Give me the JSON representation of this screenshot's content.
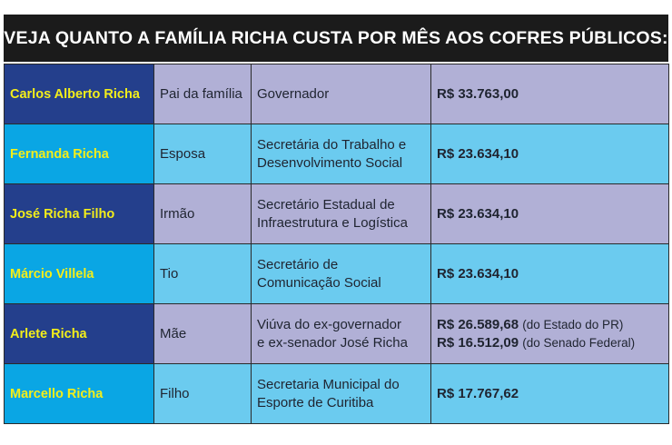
{
  "title": "VEJA QUANTO A FAMÍLIA RICHA CUSTA POR MÊS AOS COFRES PÚBLICOS:",
  "rows": [
    {
      "name": "Carlos Alberto Richa",
      "relation": "Pai da família",
      "role": [
        "Governador",
        ""
      ],
      "amounts": [
        {
          "value": "R$ 33.763,00",
          "note": ""
        }
      ]
    },
    {
      "name": "Fernanda Richa",
      "relation": "Esposa",
      "role": [
        "Secretária do Trabalho e",
        "Desenvolvimento Social"
      ],
      "amounts": [
        {
          "value": "R$ 23.634,10",
          "note": ""
        }
      ]
    },
    {
      "name": "José Richa Filho",
      "relation": "Irmão",
      "role": [
        "Secretário Estadual de",
        "Infraestrutura e Logística"
      ],
      "amounts": [
        {
          "value": "R$ 23.634,10",
          "note": ""
        }
      ]
    },
    {
      "name": "Márcio Villela",
      "relation": "Tio",
      "role": [
        "Secretário de",
        "Comunicação Social"
      ],
      "amounts": [
        {
          "value": "R$ 23.634,10",
          "note": ""
        }
      ]
    },
    {
      "name": "Arlete Richa",
      "relation": "Mãe",
      "role": [
        "Viúva do ex-governador",
        "e ex-senador José Richa"
      ],
      "amounts": [
        {
          "value": "R$ 26.589,68",
          "note": "(do Estado do PR)"
        },
        {
          "value": "R$ 16.512,09",
          "note": "(do Senado Federal)"
        }
      ]
    },
    {
      "name": "Marcello Richa",
      "relation": "Filho",
      "role": [
        "Secretaria Municipal do",
        "Esporte de Curitiba"
      ],
      "amounts": [
        {
          "value": "R$ 17.767,62",
          "note": ""
        }
      ]
    }
  ],
  "colors": {
    "header_bg": "#1b1b1b",
    "name_dark": "#243f8c",
    "name_light": "#0aa6e4",
    "cell_lavender": "#b1b0d6",
    "cell_sky": "#6bcbef",
    "name_text": "#f3ee1a"
  }
}
